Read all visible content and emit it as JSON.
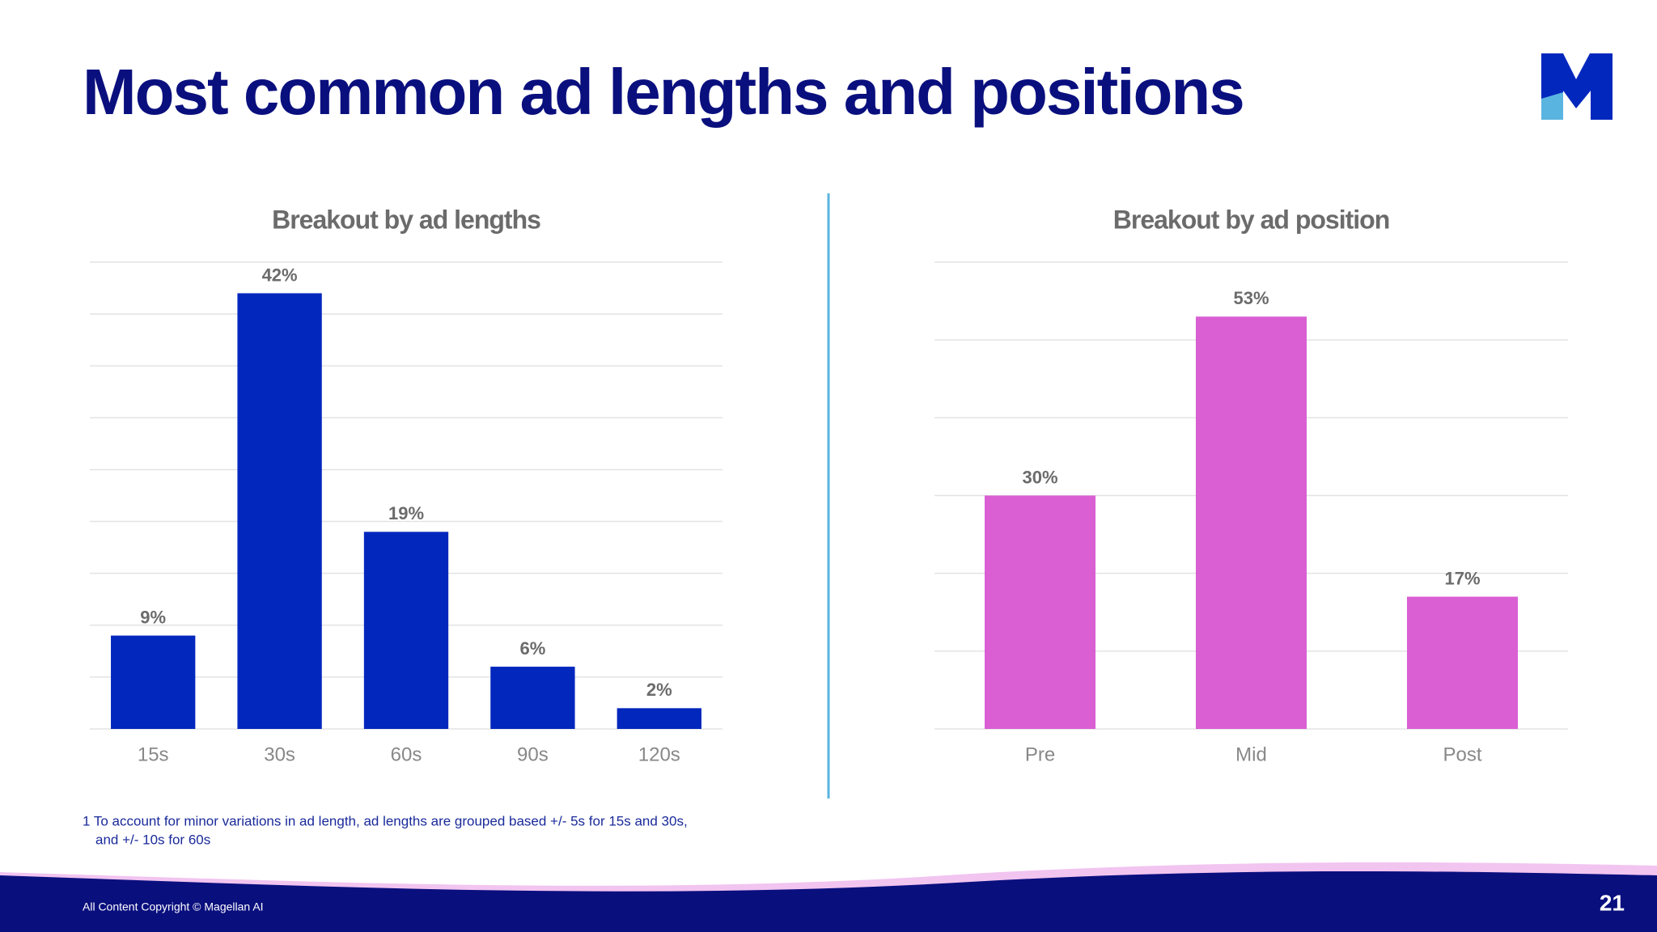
{
  "title": "Most common ad lengths and positions",
  "footnote": [
    "1 To account for minor variations in ad length, ad lengths are grouped based +/- 5s for 15s and 30s,",
    "and +/- 10s for 60s"
  ],
  "copyright": "All Content Copyright © Magellan AI",
  "page_number": "21",
  "chart_data": [
    {
      "type": "bar",
      "title": "Breakout by ad lengths",
      "categories": [
        "15s",
        "30s",
        "60s",
        "90s",
        "120s"
      ],
      "values": [
        9,
        42,
        19,
        6,
        2
      ],
      "value_labels": [
        "9%",
        "42%",
        "19%",
        "6%",
        "2%"
      ],
      "color": "#0227bd",
      "ylim": [
        0,
        45
      ],
      "yticks": [
        0,
        5,
        10,
        15,
        20,
        25,
        30,
        35,
        40,
        45
      ],
      "grid": true
    },
    {
      "type": "bar",
      "title": "Breakout by ad position",
      "categories": [
        "Pre",
        "Mid",
        "Post"
      ],
      "values": [
        30,
        53,
        17
      ],
      "value_labels": [
        "30%",
        "53%",
        "17%"
      ],
      "color": "#d95fd3",
      "ylim": [
        0,
        60
      ],
      "yticks": [
        0,
        10,
        20,
        30,
        40,
        50,
        60
      ],
      "grid": true
    }
  ]
}
